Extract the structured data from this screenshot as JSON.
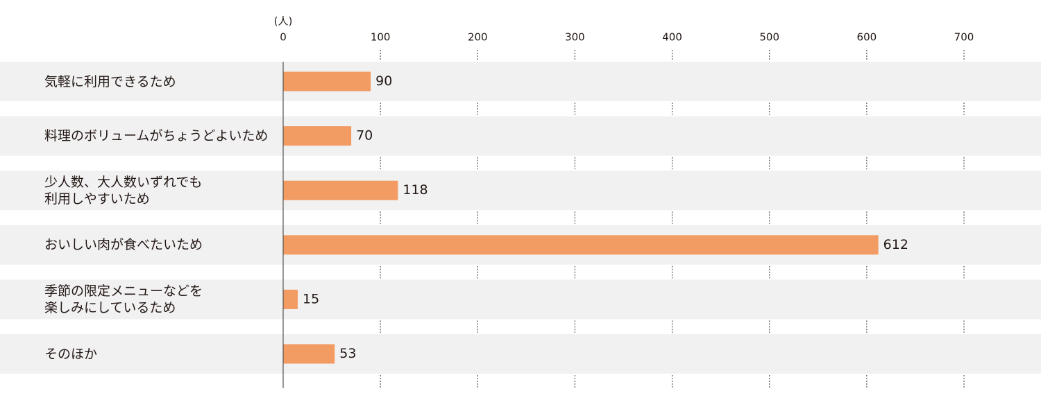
{
  "chart_data": {
    "type": "bar",
    "orientation": "horizontal",
    "unit_label": "(人)",
    "categories": [
      "気軽に利用できるため",
      "料理のボリュームがちょうどよいため",
      "少人数、大人数いずれでも\n利用しやすいため",
      "おいしい肉が食べたいため",
      "季節の限定メニューなどを\n楽しみにしているため",
      "そのほか"
    ],
    "values": [
      90,
      70,
      118,
      612,
      15,
      53
    ],
    "color": "#f29c63",
    "xlim": [
      0,
      700
    ],
    "xticks": [
      0,
      100,
      200,
      300,
      400,
      500,
      600,
      700
    ],
    "grid": true
  }
}
